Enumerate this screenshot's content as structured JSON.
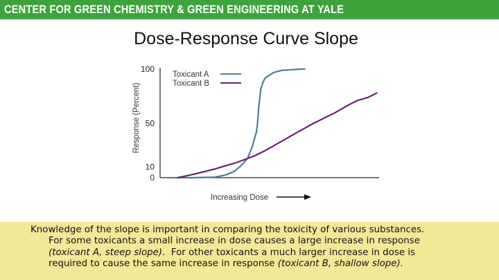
{
  "header": {
    "banner_text": "CENTER FOR GREEN CHEMISTRY & GREEN ENGINEERING AT YALE"
  },
  "slide": {
    "title": "Dose-Response Curve Slope"
  },
  "chart_data": {
    "type": "line",
    "title": "",
    "xlabel": "Increasing Dose",
    "ylabel": "Response (Percent)",
    "ylim": [
      0,
      100
    ],
    "xlim": [
      0,
      100
    ],
    "y_ticks": [
      0,
      10,
      50,
      100
    ],
    "y_tick_labels": [
      "0",
      "10",
      "50",
      "100"
    ],
    "grid": false,
    "legend": "top-left",
    "series": [
      {
        "name": "Toxicant A",
        "color": "#4d7c94",
        "x": [
          4,
          15,
          25,
          30,
          34,
          37,
          40,
          42,
          44,
          44.5,
          45,
          46,
          47,
          48,
          52,
          56,
          60,
          64,
          66
        ],
        "y": [
          0,
          0,
          0.5,
          2.5,
          6,
          11,
          18,
          28,
          42,
          50,
          64,
          82,
          88,
          92,
          97,
          99,
          99.5,
          100,
          100
        ]
      },
      {
        "name": "Toxicant B",
        "color": "#6a1e6e",
        "x": [
          8,
          15,
          25,
          35,
          43,
          48,
          55,
          62,
          70,
          80,
          86,
          90,
          95,
          99
        ],
        "y": [
          0,
          3,
          8,
          14,
          20,
          25,
          33,
          41,
          50,
          60,
          67,
          71,
          74,
          78
        ]
      }
    ]
  },
  "caption": {
    "line1": "Knowledge of the slope is important in comparing the toxicity of various substances.",
    "line2": "For some toxicants a small increase in dose causes a large increase in response",
    "line3_em": "(toxicant A, steep slope).",
    "line3_text": "For other toxicants a much larger increase in dose is",
    "line4_text": "required to cause the same increase in response",
    "line4_em": "(toxicant B, shallow slope)."
  }
}
